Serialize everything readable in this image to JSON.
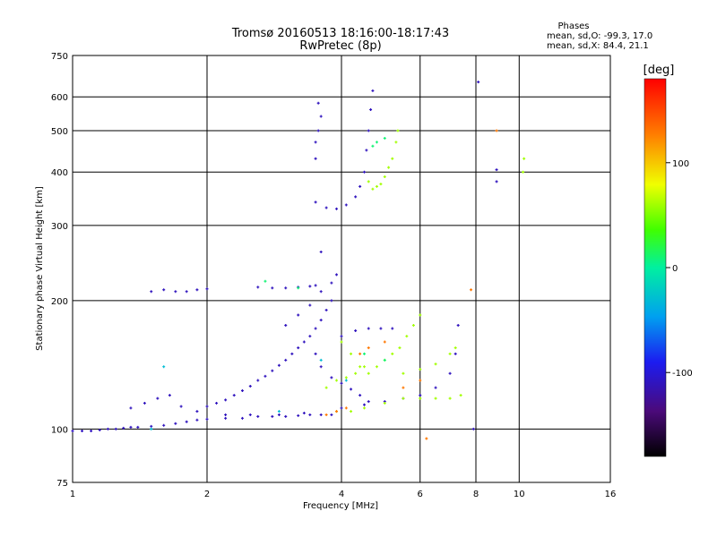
{
  "chart_data": {
    "type": "scatter",
    "title": "Tromsø 20160513 18:16:00-18:17:43",
    "subtitle": "RwPretec (8p)",
    "xlabel": "Frequency [MHz]",
    "ylabel": "Stationary phase Virtual Height [km]",
    "x_scale": "log2",
    "y_scale": "log",
    "xlim": [
      1,
      16
    ],
    "ylim": [
      75,
      750
    ],
    "x_ticks": [
      "1",
      "2",
      "4",
      "6",
      "8",
      "10",
      "16"
    ],
    "y_ticks": [
      "75",
      "100",
      "200",
      "300",
      "400",
      "500",
      "600",
      "750"
    ],
    "x_tick_values": [
      1,
      2,
      4,
      6,
      8,
      10,
      16
    ],
    "y_tick_values": [
      75,
      100,
      200,
      300,
      400,
      500,
      600,
      750
    ],
    "grid": true,
    "stats": {
      "heading": "Phases",
      "line_o": "mean, sd,O: -99.3, 17.0",
      "line_x": "mean, sd,X:  84.4, 21.1"
    },
    "colorbar": {
      "label": "[deg]",
      "ticks": [
        "100",
        "0",
        "-100"
      ],
      "tick_values": [
        100,
        0,
        -100
      ],
      "range": [
        -180,
        180
      ]
    },
    "series": [
      {
        "phase_deg": -110,
        "points": [
          [
            1.0,
            99
          ],
          [
            1.05,
            99
          ],
          [
            1.1,
            99
          ],
          [
            1.15,
            99.5
          ],
          [
            1.2,
            100
          ],
          [
            1.25,
            100
          ],
          [
            1.3,
            100.5
          ],
          [
            1.35,
            101
          ],
          [
            1.4,
            101
          ],
          [
            1.5,
            101.5
          ],
          [
            1.6,
            102
          ],
          [
            1.7,
            103
          ],
          [
            1.8,
            104
          ],
          [
            1.9,
            105
          ],
          [
            2.0,
            105.5
          ],
          [
            2.2,
            106
          ],
          [
            2.4,
            106
          ],
          [
            2.6,
            107
          ],
          [
            2.8,
            107
          ],
          [
            3.0,
            107
          ],
          [
            3.2,
            107.5
          ],
          [
            3.4,
            108
          ],
          [
            3.6,
            108
          ],
          [
            3.8,
            108
          ],
          [
            1.9,
            110
          ],
          [
            2.0,
            113
          ],
          [
            2.1,
            115
          ],
          [
            2.2,
            117
          ],
          [
            2.3,
            120
          ],
          [
            2.4,
            123
          ],
          [
            2.5,
            126
          ],
          [
            2.6,
            130
          ],
          [
            2.7,
            133
          ],
          [
            2.8,
            137
          ],
          [
            2.9,
            141
          ],
          [
            3.0,
            145
          ],
          [
            3.1,
            150
          ],
          [
            3.2,
            155
          ],
          [
            3.3,
            160
          ],
          [
            3.4,
            165
          ],
          [
            3.5,
            172
          ],
          [
            3.6,
            180
          ],
          [
            3.7,
            190
          ],
          [
            3.8,
            200
          ],
          [
            1.5,
            210
          ],
          [
            1.6,
            212
          ],
          [
            1.7,
            210
          ],
          [
            1.8,
            210
          ],
          [
            1.9,
            212
          ],
          [
            2.0,
            213
          ],
          [
            2.6,
            215
          ],
          [
            2.8,
            214
          ],
          [
            3.0,
            214
          ],
          [
            3.2,
            215
          ],
          [
            3.4,
            216
          ],
          [
            3.5,
            217
          ],
          [
            3.5,
            340
          ],
          [
            3.7,
            330
          ],
          [
            3.9,
            328
          ],
          [
            4.1,
            335
          ],
          [
            4.3,
            350
          ],
          [
            4.4,
            370
          ],
          [
            4.5,
            400
          ],
          [
            4.55,
            450
          ],
          [
            4.6,
            500
          ],
          [
            4.65,
            560
          ],
          [
            4.7,
            620
          ],
          [
            3.5,
            430
          ],
          [
            3.5,
            470
          ],
          [
            3.55,
            500
          ],
          [
            3.6,
            540
          ],
          [
            3.55,
            580
          ],
          [
            4.0,
            165
          ],
          [
            4.3,
            170
          ],
          [
            4.6,
            172
          ],
          [
            4.9,
            172
          ],
          [
            5.2,
            172
          ],
          [
            3.5,
            150
          ],
          [
            3.6,
            140
          ],
          [
            3.8,
            132
          ],
          [
            4.0,
            128
          ],
          [
            4.2,
            124
          ],
          [
            4.4,
            120
          ],
          [
            4.6,
            116
          ],
          [
            4.0,
            112
          ],
          [
            4.5,
            114
          ],
          [
            5.0,
            116
          ],
          [
            5.5,
            118
          ],
          [
            6.0,
            120
          ],
          [
            6.5,
            125
          ],
          [
            7.0,
            135
          ],
          [
            7.2,
            150
          ],
          [
            7.3,
            175
          ],
          [
            3.0,
            175
          ],
          [
            3.2,
            185
          ],
          [
            3.4,
            195
          ],
          [
            3.6,
            210
          ],
          [
            3.8,
            220
          ],
          [
            3.9,
            230
          ],
          [
            3.6,
            260
          ],
          [
            1.35,
            112
          ],
          [
            1.45,
            115
          ],
          [
            1.55,
            118
          ],
          [
            1.65,
            120
          ],
          [
            1.75,
            113
          ],
          [
            2.2,
            108
          ],
          [
            2.5,
            108
          ],
          [
            2.9,
            108
          ],
          [
            3.3,
            109
          ],
          [
            8.9,
            380
          ],
          [
            8.9,
            405
          ],
          [
            7.9,
            100
          ],
          [
            8.1,
            650
          ]
        ]
      },
      {
        "phase_deg": 60,
        "points": [
          [
            4.6,
            380
          ],
          [
            4.7,
            365
          ],
          [
            4.8,
            370
          ],
          [
            4.9,
            375
          ],
          [
            5.0,
            390
          ],
          [
            5.1,
            410
          ],
          [
            5.2,
            430
          ],
          [
            5.3,
            470
          ],
          [
            5.35,
            500
          ],
          [
            4.0,
            160
          ],
          [
            4.2,
            150
          ],
          [
            4.4,
            140
          ],
          [
            4.6,
            135
          ],
          [
            4.8,
            140
          ],
          [
            5.0,
            145
          ],
          [
            5.2,
            150
          ],
          [
            5.4,
            155
          ],
          [
            5.6,
            165
          ],
          [
            5.8,
            175
          ],
          [
            6.0,
            185
          ],
          [
            3.9,
            110
          ],
          [
            4.2,
            110
          ],
          [
            4.5,
            112
          ],
          [
            5.0,
            115
          ],
          [
            5.5,
            118
          ],
          [
            6.0,
            118
          ],
          [
            6.5,
            118
          ],
          [
            7.0,
            118
          ],
          [
            7.4,
            120
          ],
          [
            5.5,
            135
          ],
          [
            6.0,
            138
          ],
          [
            6.5,
            142
          ],
          [
            7.0,
            150
          ],
          [
            7.2,
            155
          ],
          [
            3.7,
            125
          ],
          [
            3.9,
            130
          ],
          [
            4.1,
            132
          ],
          [
            4.3,
            135
          ],
          [
            4.5,
            140
          ],
          [
            10.2,
            400
          ],
          [
            10.25,
            430
          ]
        ]
      },
      {
        "phase_deg": 130,
        "points": [
          [
            3.7,
            108
          ],
          [
            3.9,
            110
          ],
          [
            4.1,
            112
          ],
          [
            4.4,
            150
          ],
          [
            4.6,
            155
          ],
          [
            5.0,
            160
          ],
          [
            5.5,
            125
          ],
          [
            6.0,
            130
          ],
          [
            6.2,
            95
          ],
          [
            8.9,
            500
          ],
          [
            7.8,
            212
          ]
        ]
      },
      {
        "phase_deg": 10,
        "points": [
          [
            4.7,
            460
          ],
          [
            4.8,
            470
          ],
          [
            5.0,
            480
          ],
          [
            2.7,
            222
          ],
          [
            3.2,
            214
          ],
          [
            4.5,
            150
          ],
          [
            5.0,
            145
          ]
        ]
      },
      {
        "phase_deg": -30,
        "points": [
          [
            1.5,
            100
          ],
          [
            1.6,
            140
          ],
          [
            2.9,
            110
          ],
          [
            3.6,
            145
          ],
          [
            4.1,
            130
          ]
        ]
      }
    ]
  }
}
